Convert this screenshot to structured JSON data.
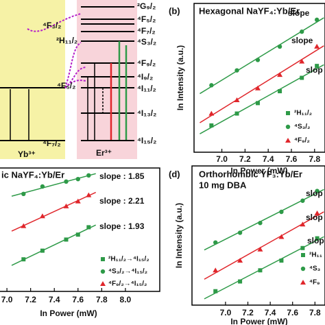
{
  "diagram": {
    "yb_label": "Yb³⁺",
    "er_label": "Er³⁺",
    "yb_levels": [
      "⁴F₅/₂",
      "⁴F₇/₂"
    ],
    "left_levels": [
      "⁴F₃/₂",
      "²H₁₁/₂"
    ],
    "er_levels": [
      "²G₉/₂",
      "⁴F₅/₂",
      "⁴F₇/₂",
      "⁴S₃/₂",
      "⁴F₉/₂",
      "⁴I₉/₂",
      "⁴I₁₁/₂",
      "⁴I₁₃/₂",
      "⁴I₁₅/₂"
    ]
  },
  "chart_data": [
    {
      "type": "scatter",
      "panel_label": "(b)",
      "title": "Hexagonal NaYF₄:Yb/Er",
      "xlabel": "In  Power (mW)",
      "ylabel": "In Intensity (a.u.)",
      "xlim": [
        6.76,
        7.89
      ],
      "xticks": [
        {
          "value": 7,
          "label": "7.0"
        },
        7.2,
        7.4,
        7.6,
        7.8
      ],
      "ylim": [
        0,
        10
      ],
      "x": [
        6.91,
        7.13,
        7.31,
        7.5,
        7.69,
        7.82
      ],
      "series": [
        {
          "name": "²H₁₁/₂",
          "color": "#2e9a48",
          "marker": "square",
          "values": [
            1.8,
            2.6,
            3.3,
            4.1,
            5.0,
            5.8
          ]
        },
        {
          "name": "⁴S₃/₂",
          "color": "#2e9a48",
          "marker": "circle",
          "values": [
            4.5,
            5.5,
            6.2,
            7.1,
            8.1,
            8.9
          ]
        },
        {
          "name": "⁴F₉/₂",
          "color": "#e0262b",
          "marker": "triangle",
          "values": [
            2.6,
            3.5,
            4.3,
            5.2,
            6.1,
            7.1
          ]
        }
      ],
      "slope_labels": [
        "slope",
        "slope",
        "slop"
      ]
    },
    {
      "type": "scatter",
      "title": "ic NaYF₄:Yb/Er",
      "xlabel": "In  Power (mW)",
      "xlim": [
        6.93,
        8.29
      ],
      "xticks": [
        {
          "value": 7,
          "label": "7.0"
        },
        7.2,
        7.4,
        7.6,
        7.8,
        {
          "value": 8,
          "label": "8.0"
        }
      ],
      "ylim": [
        0,
        10
      ],
      "x": [
        7.14,
        7.3,
        7.5,
        7.6,
        7.69
      ],
      "series": [
        {
          "name": "²H₁₁/₂→⁴I₁₅/₂",
          "color": "#2e9a48",
          "marker": "square",
          "values": [
            2.6,
            3.3,
            4.2,
            4.6,
            5.2
          ]
        },
        {
          "name": "⁴S₃/₂→⁴I₁₅/₂",
          "color": "#2e9a48",
          "marker": "circle",
          "values": [
            7.9,
            8.5,
            8.9,
            9.1,
            9.4
          ]
        },
        {
          "name": "⁴F₉/₂→⁴I₁₅/₂",
          "color": "#e0262b",
          "marker": "triangle",
          "values": [
            5.3,
            6.1,
            6.9,
            7.3,
            7.8
          ]
        }
      ],
      "slope_labels": [
        "slope : 1.85",
        "slope : 2.21",
        "slope : 1.93"
      ]
    },
    {
      "type": "scatter",
      "panel_label": "(d)",
      "title": "Orthorhombic YF₃:Yb/Er",
      "subtitle": "10 mg DBA",
      "xlabel": "In  Power (mW)",
      "ylabel": "In Intensity (a.u.)",
      "xlim": [
        6.7,
        7.89
      ],
      "xticks": [
        {
          "value": 7,
          "label": "7.0"
        },
        7.2,
        7.4,
        7.6,
        7.8
      ],
      "ylim": [
        0,
        10
      ],
      "x": [
        6.91,
        7.13,
        7.31,
        7.5,
        7.69,
        7.82
      ],
      "series": [
        {
          "name": "²H₁₁",
          "color": "#2e9a48",
          "marker": "square",
          "values": [
            1.0,
            1.7,
            2.5,
            3.2,
            4.1,
            4.8
          ]
        },
        {
          "name": "⁴S₃",
          "color": "#2e9a48",
          "marker": "circle",
          "values": [
            4.5,
            5.2,
            5.9,
            6.7,
            7.5,
            8.2
          ]
        },
        {
          "name": "⁴F₉",
          "color": "#e0262b",
          "marker": "triangle",
          "values": [
            2.5,
            3.2,
            4.0,
            4.9,
            5.8,
            6.6
          ]
        }
      ],
      "slope_labels": [
        "slop",
        "slop",
        "slop"
      ]
    }
  ]
}
